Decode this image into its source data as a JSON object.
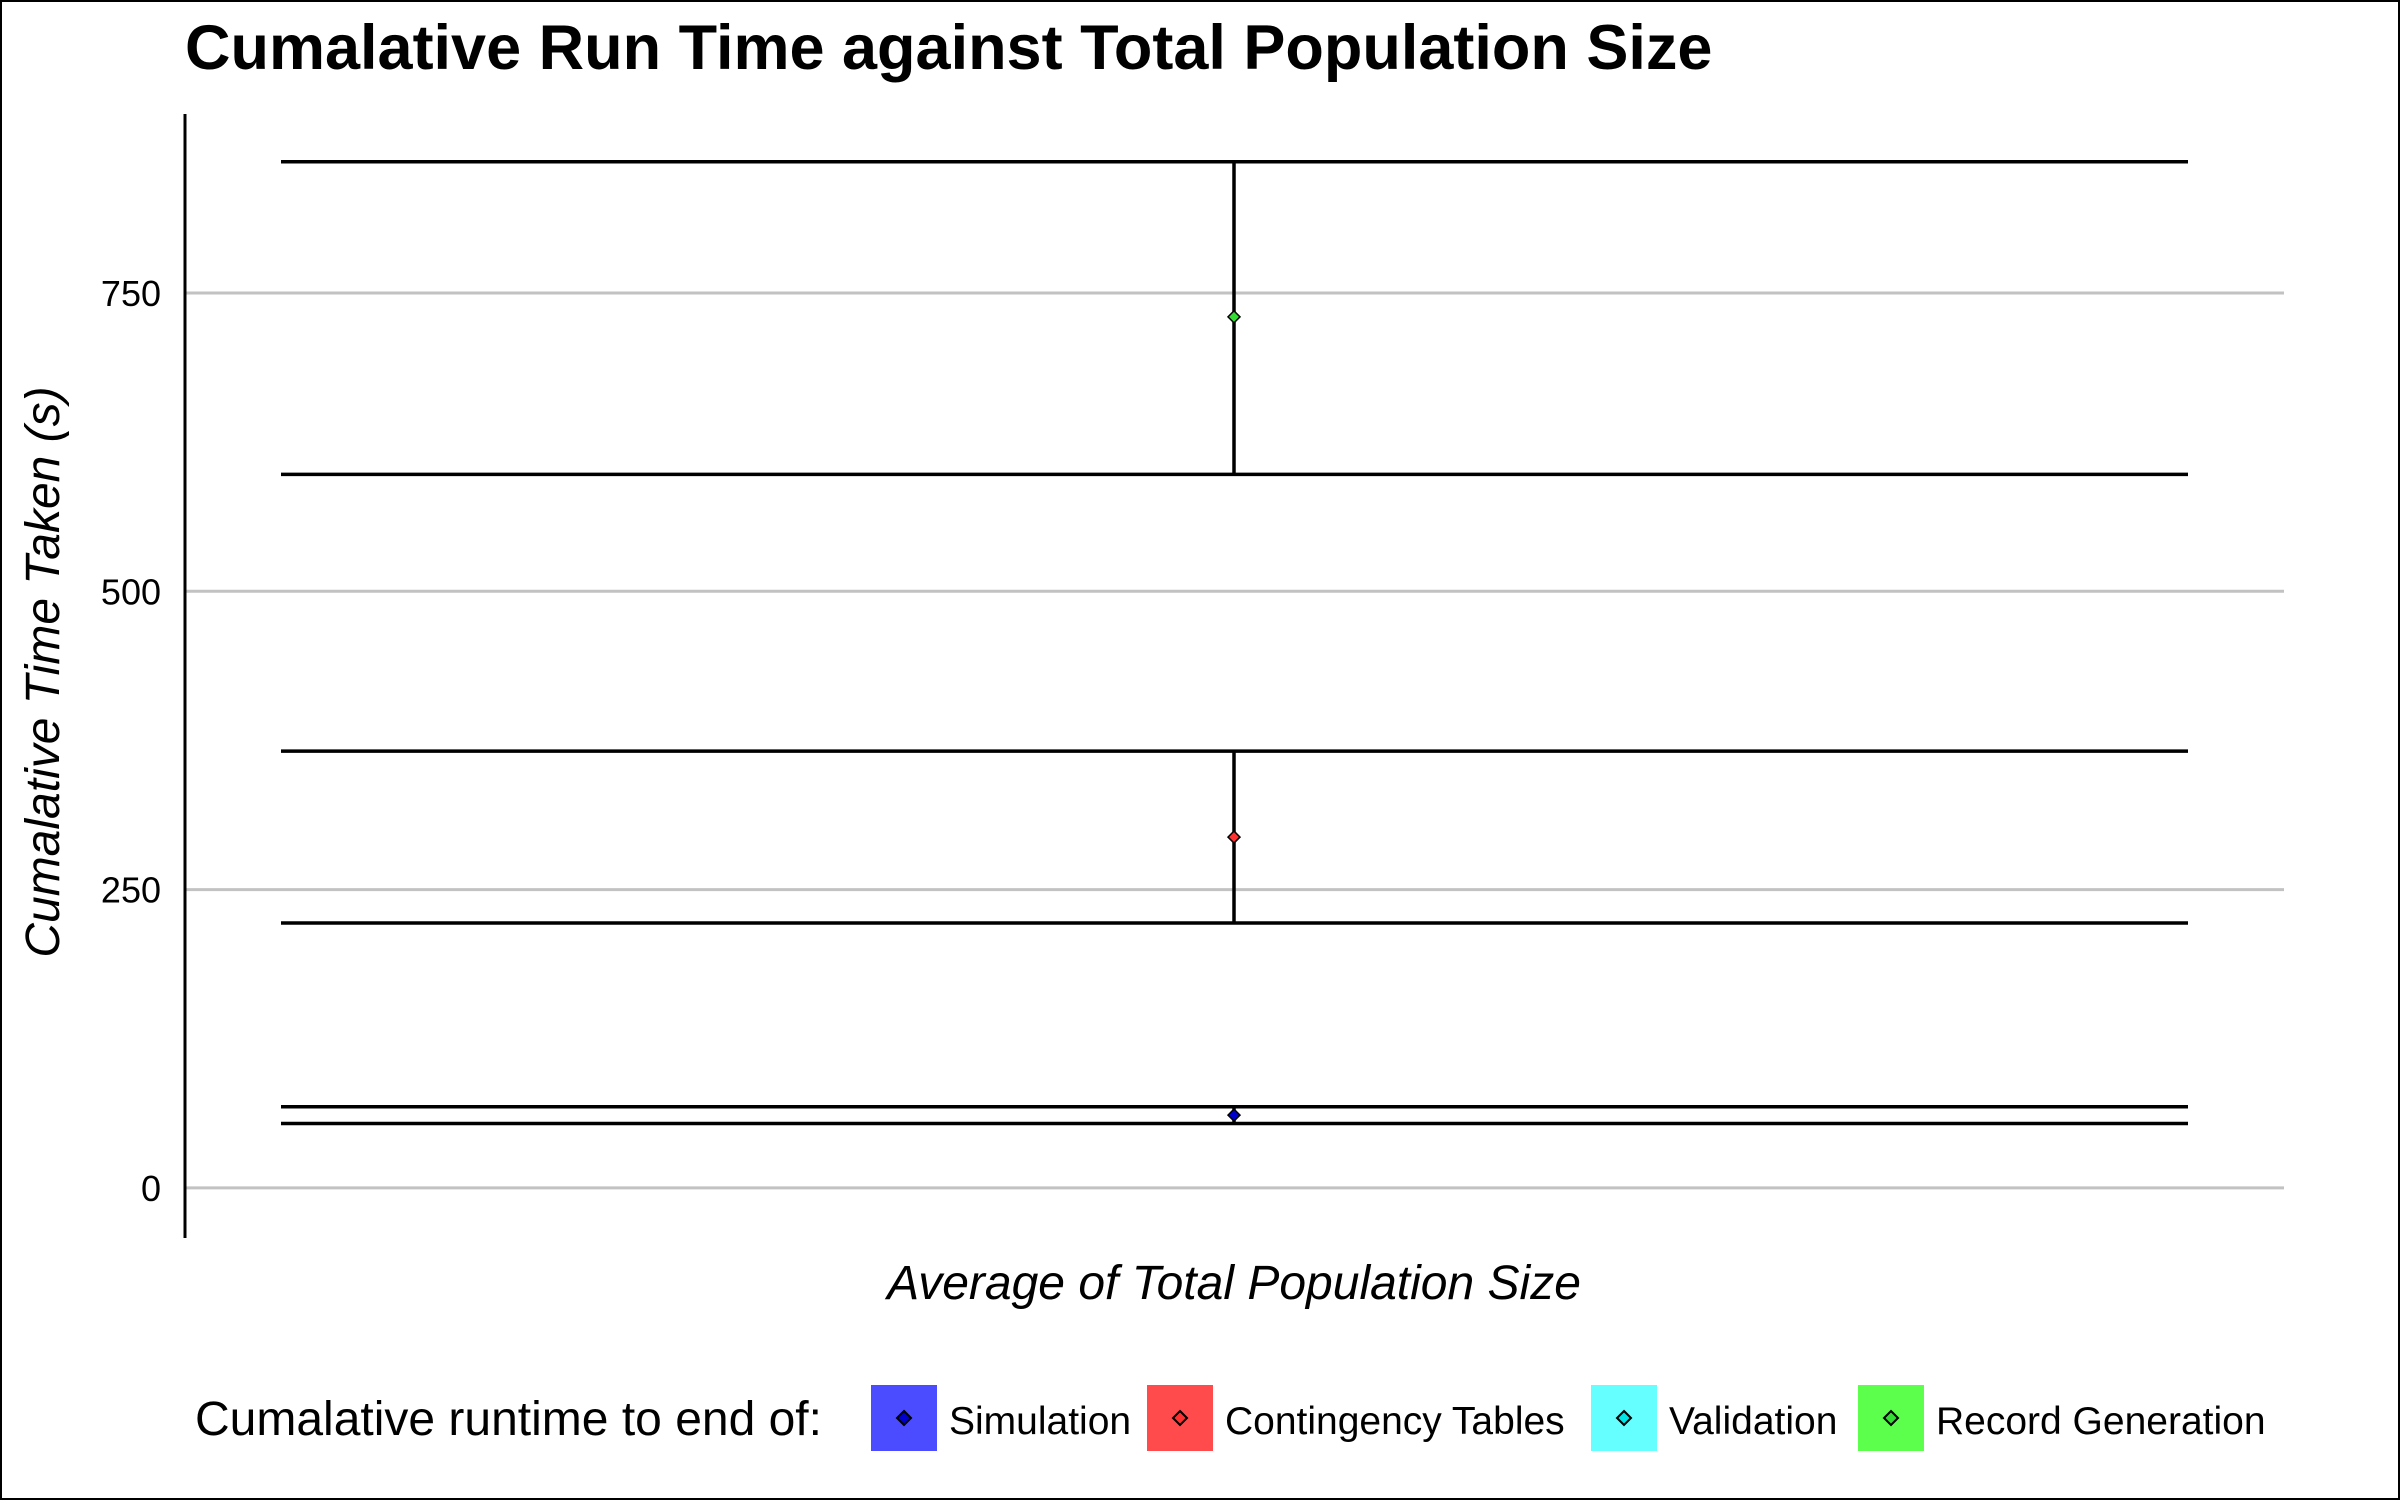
{
  "chart_data": {
    "type": "scatter",
    "title": "Cumalative Run Time against Total Population Size",
    "xlabel": "Average of Total Population Size",
    "ylabel": "Cumalative Time Taken (s)",
    "ylim": [
      -42,
      900
    ],
    "yticks": [
      0,
      250,
      500,
      750
    ],
    "ytick_labels": [
      "0",
      "250",
      "500",
      "750"
    ],
    "grid": "horizontal major",
    "legend": {
      "position": "bottom",
      "title": "Cumalative runtime to end of:"
    },
    "series": [
      {
        "name": "Simulation",
        "color": "#4B4BFF",
        "marker_color": "#0000CC",
        "x": 0,
        "y": 61,
        "err_low": 54,
        "err_high": 68
      },
      {
        "name": "Contingency Tables",
        "color": "#FF4B4B",
        "marker_color": "#FF3030",
        "x": 0,
        "y": 294,
        "err_low": 222,
        "err_high": 366
      },
      {
        "name": "Validation",
        "color": "#66FFFF",
        "marker_color": "#00E5E5"
      },
      {
        "name": "Record Generation",
        "color": "#5CFF4B",
        "marker_color": "#33DD33",
        "x": 0,
        "y": 730,
        "err_low": 598,
        "err_high": 860
      }
    ]
  }
}
